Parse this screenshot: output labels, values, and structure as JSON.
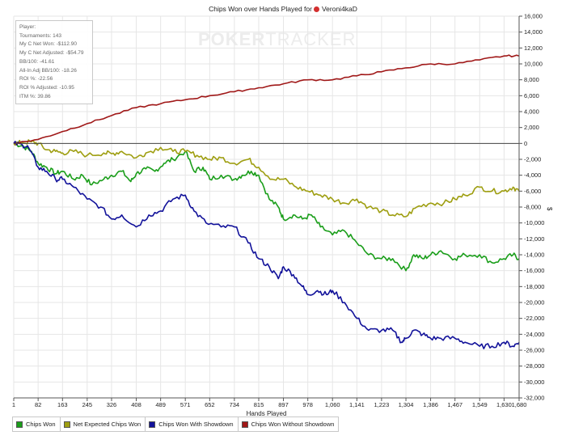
{
  "title_prefix": "Chips Won over Hands Played for",
  "player_name": "Veroni4kaD",
  "watermark": {
    "strong": "POKER",
    "light": "TRACKER"
  },
  "info": {
    "lines": [
      "Player:",
      "Tournaments: 143",
      "My C Net Won: -$112.90",
      "My C Net Adjusted: -$54.79",
      "BB/100: -41.61",
      "All-In Adj BB/100: -18.26",
      "ROI %: -22.56",
      "ROI % Adjusted: -10.95",
      "ITM %: 39.86"
    ]
  },
  "chart_data": {
    "type": "line",
    "title": "Chips Won over Hands Played for Veroni4kaD",
    "xlabel": "Hands Played",
    "ylabel": "$",
    "xlim": [
      1,
      1680
    ],
    "ylim": [
      -32000,
      16000
    ],
    "x_ticks": [
      1,
      82,
      163,
      245,
      326,
      408,
      489,
      571,
      652,
      734,
      815,
      897,
      978,
      1060,
      1141,
      1223,
      1304,
      1386,
      1467,
      1549,
      1630,
      1680
    ],
    "x_tick_labels": [
      "1",
      "82",
      "163",
      "245",
      "326",
      "408",
      "489",
      "571",
      "652",
      "734",
      "815",
      "897",
      "978",
      "1,060",
      "1,141",
      "1,223",
      "1,304",
      "1,386",
      "1,467",
      "1,549",
      "1,630",
      "1,680"
    ],
    "y_ticks": [
      16000,
      14000,
      12000,
      10000,
      8000,
      6000,
      4000,
      2000,
      0,
      -2000,
      -4000,
      -6000,
      -8000,
      -10000,
      -12000,
      -14000,
      -16000,
      -18000,
      -20000,
      -22000,
      -24000,
      -26000,
      -28000,
      -30000,
      -32000
    ],
    "y_tick_labels": [
      "16,000",
      "14,000",
      "12,000",
      "10,000",
      "8,000",
      "6,000",
      "4,000",
      "2,000",
      "0",
      "-2,000",
      "-4,000",
      "-6,000",
      "-8,000",
      "-10,000",
      "-12,000",
      "-14,000",
      "-16,000",
      "-18,000",
      "-20,000",
      "-22,000",
      "-24,000",
      "-26,000",
      "-28,000",
      "-30,000",
      "-32,000"
    ],
    "legend_position": "bottom",
    "series": [
      {
        "name": "Chips Won",
        "color": "#1a9e1a",
        "x": [
          1,
          30,
          60,
          82,
          110,
          140,
          163,
          200,
          230,
          260,
          300,
          326,
          360,
          390,
          408,
          440,
          470,
          500,
          530,
          571,
          600,
          630,
          652,
          690,
          734,
          760,
          790,
          815,
          850,
          880,
          897,
          930,
          960,
          990,
          1020,
          1060,
          1100,
          1141,
          1180,
          1223,
          1260,
          1304,
          1330,
          1360,
          1386,
          1420,
          1467,
          1500,
          1549,
          1590,
          1630,
          1660,
          1680
        ],
        "y": [
          0,
          -300,
          -1000,
          -2500,
          -3000,
          -3800,
          -3500,
          -4500,
          -4000,
          -5200,
          -4500,
          -4000,
          -3500,
          -4800,
          -3800,
          -3200,
          -3500,
          -2500,
          -2000,
          -1000,
          -3500,
          -3000,
          -4500,
          -4000,
          -4500,
          -4000,
          -3500,
          -4000,
          -7000,
          -8000,
          -9500,
          -9000,
          -9500,
          -9000,
          -10500,
          -11500,
          -11000,
          -12500,
          -14000,
          -14500,
          -14500,
          -16000,
          -14000,
          -14500,
          -14000,
          -13500,
          -14500,
          -14000,
          -14000,
          -15000,
          -14500,
          -14000,
          -14500
        ]
      },
      {
        "name": "Net Expected Chips Won",
        "color": "#9e9e10",
        "x": [
          1,
          30,
          60,
          82,
          110,
          140,
          163,
          200,
          245,
          300,
          326,
          360,
          408,
          440,
          489,
          530,
          571,
          610,
          652,
          690,
          734,
          780,
          815,
          860,
          897,
          940,
          978,
          1020,
          1060,
          1100,
          1141,
          1180,
          1223,
          1260,
          1304,
          1340,
          1386,
          1430,
          1467,
          1500,
          1549,
          1590,
          1630,
          1660,
          1680
        ],
        "y": [
          0,
          100,
          200,
          0,
          -800,
          -1000,
          -1200,
          -1000,
          -1500,
          -1200,
          -1300,
          -1000,
          -1800,
          -1200,
          -500,
          -1000,
          -1000,
          -1500,
          -2000,
          -1800,
          -2500,
          -2000,
          -3000,
          -4500,
          -4500,
          -5500,
          -6000,
          -6500,
          -7000,
          -7500,
          -7000,
          -8000,
          -8500,
          -9000,
          -9200,
          -8000,
          -7500,
          -7500,
          -7000,
          -6500,
          -5500,
          -6000,
          -6000,
          -5500,
          -6000
        ]
      },
      {
        "name": "Chips Won With Showdown",
        "color": "#12129a",
        "x": [
          1,
          30,
          50,
          82,
          110,
          140,
          163,
          200,
          245,
          290,
          326,
          360,
          408,
          450,
          489,
          530,
          571,
          600,
          640,
          690,
          734,
          780,
          815,
          850,
          880,
          897,
          930,
          960,
          978,
          1010,
          1040,
          1060,
          1100,
          1141,
          1180,
          1223,
          1260,
          1290,
          1304,
          1330,
          1360,
          1386,
          1420,
          1467,
          1500,
          1549,
          1590,
          1630,
          1660,
          1680
        ],
        "y": [
          0,
          -200,
          -500,
          -3000,
          -3500,
          -4500,
          -4500,
          -5500,
          -7000,
          -8000,
          -9500,
          -9000,
          -10500,
          -9000,
          -8500,
          -7000,
          -6500,
          -8500,
          -10000,
          -10500,
          -10500,
          -12500,
          -14500,
          -15500,
          -17000,
          -15500,
          -16500,
          -18000,
          -19000,
          -18500,
          -19000,
          -18500,
          -20000,
          -22000,
          -23500,
          -23500,
          -23500,
          -25000,
          -24500,
          -23500,
          -24000,
          -24500,
          -24500,
          -24500,
          -25000,
          -25500,
          -25500,
          -25000,
          -25500,
          -25000
        ]
      },
      {
        "name": "Chips Won Without Showdown",
        "color": "#a01818",
        "x": [
          1,
          82,
          163,
          245,
          326,
          408,
          489,
          571,
          652,
          734,
          815,
          897,
          978,
          1060,
          1141,
          1223,
          1304,
          1386,
          1467,
          1549,
          1630,
          1680
        ],
        "y": [
          0,
          500,
          1500,
          2500,
          3500,
          4500,
          5000,
          5500,
          6000,
          6500,
          7000,
          7500,
          8000,
          8000,
          8500,
          9000,
          9500,
          10000,
          10000,
          10500,
          11000,
          11000
        ]
      }
    ]
  }
}
